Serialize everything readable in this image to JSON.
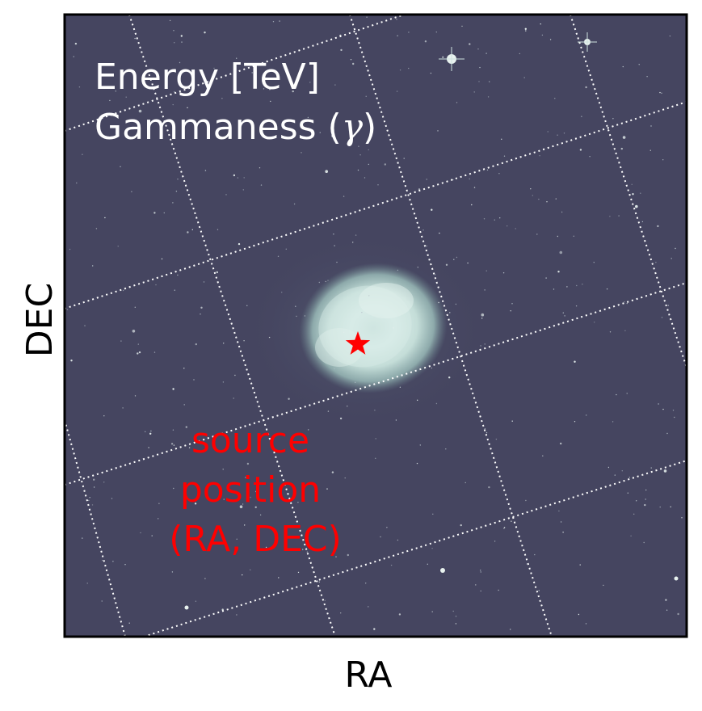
{
  "axes": {
    "xlabel": "RA",
    "ylabel": "DEC"
  },
  "overlay": {
    "line1": "Energy [TeV]",
    "line2_prefix": "Gammaness (",
    "line2_symbol": "γ",
    "line2_suffix": ")",
    "color": "#ffffff"
  },
  "annotation": {
    "line1": "source",
    "line2": "position",
    "line3": "(RA, DEC)",
    "color": "#ff0000"
  },
  "marker": {
    "shape": "star",
    "color": "#ff0000"
  },
  "image": {
    "subject": "nebula-star-field",
    "background_color": "#454560",
    "grid_style": "dotted",
    "grid_color": "#ffffff"
  }
}
